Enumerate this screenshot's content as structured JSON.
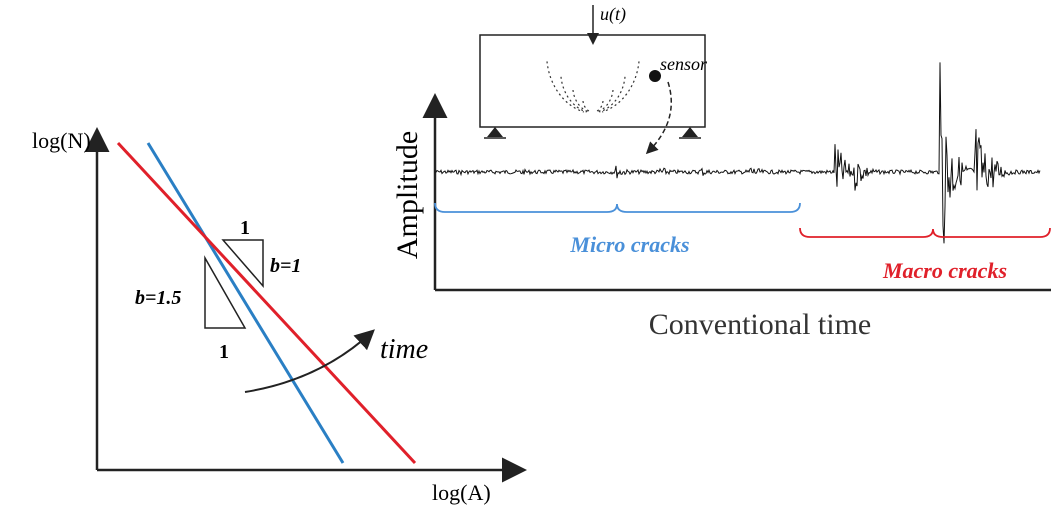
{
  "left_plot": {
    "y_label": "log(N)",
    "x_label": "log(A)",
    "slope_top_run": "1",
    "slope_b1": "b=1",
    "slope_b15": "b=1.5",
    "slope_bottom_run": "1",
    "arrow_label": "time"
  },
  "right_plot": {
    "load_label": "u(t)",
    "sensor_label": "sensor",
    "y_label": "Amplitude",
    "x_label": "Conventional time",
    "micro_label": "Micro cracks",
    "macro_label": "Macro cracks"
  }
}
